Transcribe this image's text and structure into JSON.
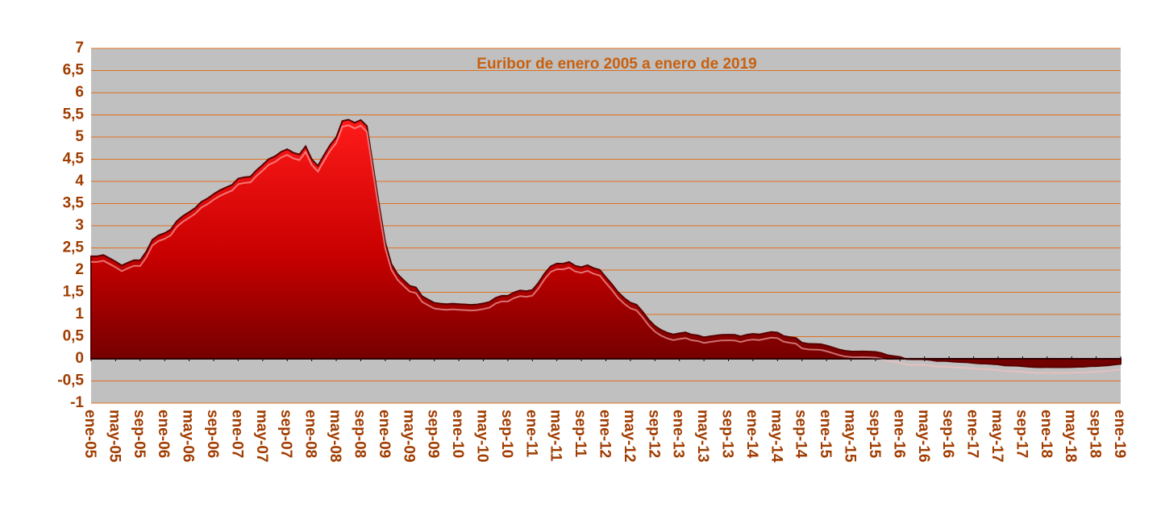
{
  "chart_data": {
    "type": "area",
    "title": "Euribor de enero 2005 a enero de 2019",
    "color": "#e00000",
    "grid": true,
    "ylim": [
      -1,
      7
    ],
    "yticks": [
      -1,
      {
        "value": -0.5,
        "label": "-0,5"
      },
      0,
      {
        "value": 0.5,
        "label": "0,5"
      },
      1,
      {
        "value": 1.5,
        "label": "1,5"
      },
      2,
      {
        "value": 2.5,
        "label": "2,5"
      },
      3,
      {
        "value": 3.5,
        "label": "3,5"
      },
      4,
      {
        "value": 4.5,
        "label": "4,5"
      },
      5,
      {
        "value": 5.5,
        "label": "5,5"
      },
      6,
      {
        "value": 6.5,
        "label": "6,5"
      },
      7
    ],
    "categories": [
      "ene-05",
      null,
      null,
      null,
      "may-05",
      null,
      null,
      null,
      "sep-05",
      null,
      null,
      null,
      "ene-06",
      null,
      null,
      null,
      "may-06",
      null,
      null,
      null,
      "sep-06",
      null,
      null,
      null,
      "ene-07",
      null,
      null,
      null,
      "may-07",
      null,
      null,
      null,
      "sep-07",
      null,
      null,
      null,
      "ene-08",
      null,
      null,
      null,
      "may-08",
      null,
      null,
      null,
      "sep-08",
      null,
      null,
      null,
      "ene-09",
      null,
      null,
      null,
      "may-09",
      null,
      null,
      null,
      "sep-09",
      null,
      null,
      null,
      "ene-10",
      null,
      null,
      null,
      "may-10",
      null,
      null,
      null,
      "sep-10",
      null,
      null,
      null,
      "ene-11",
      null,
      null,
      null,
      "may-11",
      null,
      null,
      null,
      "sep-11",
      null,
      null,
      null,
      "ene-12",
      null,
      null,
      null,
      "may-12",
      null,
      null,
      null,
      "sep-12",
      null,
      null,
      null,
      "ene-13",
      null,
      null,
      null,
      "may-13",
      null,
      null,
      null,
      "sep-13",
      null,
      null,
      null,
      "ene-14",
      null,
      null,
      null,
      "may-14",
      null,
      null,
      null,
      "sep-14",
      null,
      null,
      null,
      "ene-15",
      null,
      null,
      null,
      "may-15",
      null,
      null,
      null,
      "sep-15",
      null,
      null,
      null,
      "ene-16",
      null,
      null,
      null,
      "may-16",
      null,
      null,
      null,
      "sep-16",
      null,
      null,
      null,
      "ene-17",
      null,
      null,
      null,
      "may-17",
      null,
      null,
      null,
      "sep-17",
      null,
      null,
      null,
      "ene-18",
      null,
      null,
      null,
      "may-18",
      null,
      null,
      null,
      "sep-18",
      null,
      null,
      null,
      "ene-19"
    ],
    "values": [
      2.312,
      2.311,
      2.339,
      2.267,
      2.192,
      2.103,
      2.168,
      2.223,
      2.22,
      2.414,
      2.684,
      2.783,
      2.833,
      2.914,
      3.105,
      3.221,
      3.308,
      3.401,
      3.539,
      3.615,
      3.715,
      3.799,
      3.864,
      3.921,
      4.064,
      4.094,
      4.106,
      4.253,
      4.373,
      4.505,
      4.564,
      4.666,
      4.725,
      4.647,
      4.607,
      4.793,
      4.498,
      4.349,
      4.59,
      4.82,
      4.994,
      5.361,
      5.393,
      5.323,
      5.384,
      5.248,
      4.35,
      3.452,
      2.622,
      2.135,
      1.909,
      1.771,
      1.644,
      1.61,
      1.412,
      1.334,
      1.261,
      1.243,
      1.231,
      1.242,
      1.232,
      1.225,
      1.215,
      1.225,
      1.249,
      1.281,
      1.373,
      1.421,
      1.42,
      1.495,
      1.541,
      1.526,
      1.55,
      1.714,
      1.924,
      2.086,
      2.147,
      2.144,
      2.183,
      2.097,
      2.067,
      2.11,
      2.044,
      2.004,
      1.837,
      1.678,
      1.499,
      1.368,
      1.266,
      1.219,
      1.061,
      0.877,
      0.74,
      0.65,
      0.588,
      0.549,
      0.575,
      0.594,
      0.545,
      0.528,
      0.484,
      0.507,
      0.525,
      0.542,
      0.543,
      0.541,
      0.506,
      0.543,
      0.562,
      0.549,
      0.577,
      0.604,
      0.592,
      0.513,
      0.488,
      0.469,
      0.362,
      0.338,
      0.335,
      0.329,
      0.298,
      0.255,
      0.212,
      0.18,
      0.165,
      0.163,
      0.167,
      0.161,
      0.154,
      0.128,
      0.079,
      0.059,
      0.042,
      -0.008,
      -0.012,
      -0.01,
      -0.013,
      -0.028,
      -0.051,
      -0.048,
      -0.057,
      -0.069,
      -0.074,
      -0.08,
      -0.095,
      -0.106,
      -0.11,
      -0.119,
      -0.127,
      -0.149,
      -0.154,
      -0.156,
      -0.168,
      -0.18,
      -0.189,
      -0.19,
      -0.189,
      -0.191,
      -0.191,
      -0.19,
      -0.188,
      -0.181,
      -0.18,
      -0.169,
      -0.166,
      -0.156,
      -0.147,
      -0.129,
      -0.116
    ]
  }
}
